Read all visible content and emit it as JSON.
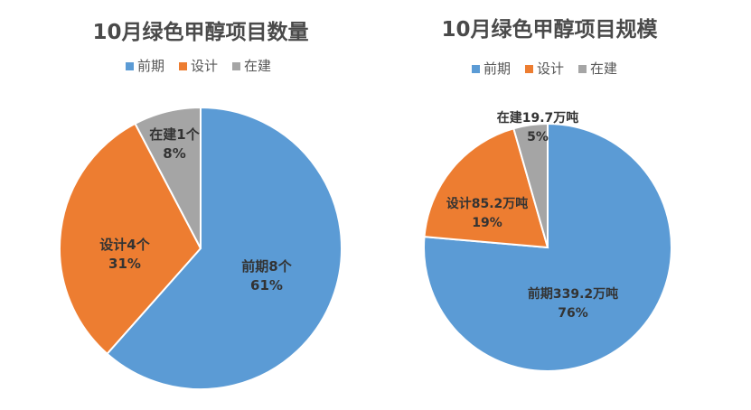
{
  "colors": {
    "前期": "#5b9bd5",
    "设计": "#ed7d31",
    "在建": "#a5a5a5"
  },
  "chart_data": [
    {
      "type": "pie",
      "title": "10月绿色甲醇项目数量",
      "legend": [
        "前期",
        "设计",
        "在建"
      ],
      "legend_position": "top",
      "slices": [
        {
          "name": "前期",
          "value": 8,
          "percent": 61,
          "label": "前期8个",
          "pct_label": "61%"
        },
        {
          "name": "设计",
          "value": 4,
          "percent": 31,
          "label": "设计4个",
          "pct_label": "31%"
        },
        {
          "name": "在建",
          "value": 1,
          "percent": 8,
          "label": "在建1个",
          "pct_label": "8%"
        }
      ]
    },
    {
      "type": "pie",
      "title": "10月绿色甲醇项目规模",
      "legend": [
        "前期",
        "设计",
        "在建"
      ],
      "legend_position": "top",
      "slices": [
        {
          "name": "前期",
          "value": 339.2,
          "percent": 76,
          "label": "前期339.2万吨",
          "pct_label": "76%"
        },
        {
          "name": "设计",
          "value": 85.2,
          "percent": 19,
          "label": "设计85.2万吨",
          "pct_label": "19%"
        },
        {
          "name": "在建",
          "value": 19.7,
          "percent": 5,
          "label": "在建19.7万吨",
          "pct_label": "5%"
        }
      ]
    }
  ]
}
